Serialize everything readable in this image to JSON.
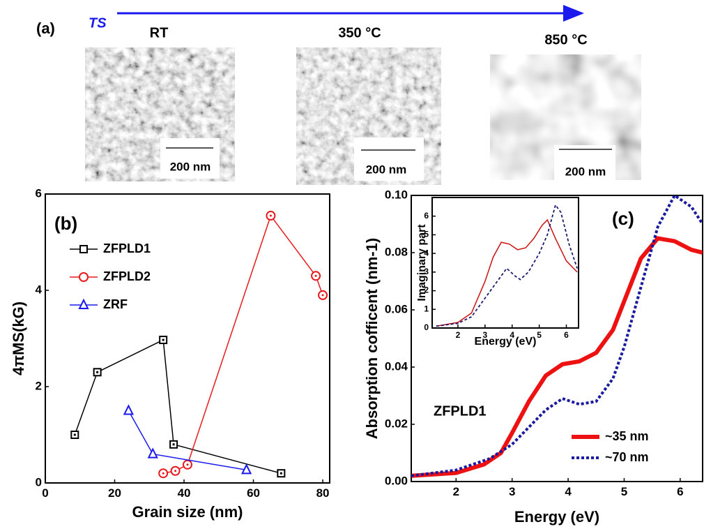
{
  "panel_a": {
    "label": "(a)",
    "arrow_label": "TS",
    "images": [
      {
        "caption": "RT",
        "scale_bar": "200 nm"
      },
      {
        "caption": "350 °C",
        "scale_bar": "200 nm"
      },
      {
        "caption": "850 °C",
        "scale_bar": "200 nm"
      }
    ]
  },
  "chart_data": [
    {
      "type": "line",
      "panel_label": "(b)",
      "xlabel": "Grain size (nm)",
      "ylabel": "4πMS(kG)",
      "xlim": [
        0,
        82
      ],
      "ylim": [
        0,
        6
      ],
      "xticks": [
        0,
        20,
        40,
        60,
        80
      ],
      "yticks": [
        0,
        2,
        4,
        6
      ],
      "legend": "upper left",
      "series": [
        {
          "name": "ZFPLD1",
          "color": "#000000",
          "marker": "square",
          "x": [
            8.5,
            15,
            34,
            37,
            68
          ],
          "values": [
            1.0,
            2.3,
            2.97,
            0.8,
            0.2
          ]
        },
        {
          "name": "ZFPLD2",
          "color": "#e8191c",
          "marker": "circle",
          "x": [
            34,
            37.5,
            41,
            65,
            78,
            80
          ],
          "values": [
            0.2,
            0.25,
            0.38,
            5.55,
            4.3,
            3.9
          ]
        },
        {
          "name": "ZRF",
          "color": "#1a1aee",
          "marker": "triangle",
          "x": [
            24,
            31,
            58
          ],
          "values": [
            1.5,
            0.6,
            0.27
          ]
        }
      ]
    },
    {
      "type": "line",
      "panel_label": "(c)",
      "annotation": "ZFPLD1",
      "xlabel": "Energy (eV)",
      "ylabel": "Absorption cofficent (nm-1)",
      "xlim": [
        1.2,
        6.4
      ],
      "ylim": [
        0,
        0.1
      ],
      "xticks": [
        2,
        3,
        4,
        5,
        6
      ],
      "yticks": [
        {
          "value": 0,
          "label": "0.00"
        },
        {
          "value": 0.02,
          "label": "0.02"
        },
        {
          "value": 0.04,
          "label": "0.04"
        },
        {
          "value": 0.06,
          "label": "0.06"
        },
        {
          "value": 0.08,
          "label": "0.08"
        },
        {
          "value": 0.1,
          "label": "0.10"
        }
      ],
      "legend": "lower right",
      "series": [
        {
          "name": "~35 nm",
          "color": "#ee1111",
          "dash": "solid",
          "width": 6,
          "x": [
            1.2,
            2,
            2.5,
            2.8,
            3.0,
            3.3,
            3.6,
            3.9,
            4.2,
            4.5,
            4.8,
            5.0,
            5.3,
            5.6,
            5.9,
            6.2,
            6.4
          ],
          "values": [
            0.002,
            0.003,
            0.006,
            0.01,
            0.017,
            0.028,
            0.037,
            0.041,
            0.042,
            0.045,
            0.053,
            0.063,
            0.078,
            0.085,
            0.084,
            0.081,
            0.08
          ]
        },
        {
          "name": "~70 nm",
          "color": "#1a1a9e",
          "dash": "dotted",
          "width": 4,
          "x": [
            1.2,
            2,
            2.6,
            3.0,
            3.3,
            3.6,
            3.9,
            4.2,
            4.5,
            4.8,
            5.0,
            5.3,
            5.6,
            5.9,
            6.2,
            6.4
          ],
          "values": [
            0.002,
            0.004,
            0.008,
            0.013,
            0.019,
            0.025,
            0.029,
            0.027,
            0.028,
            0.036,
            0.047,
            0.068,
            0.089,
            0.1,
            0.096,
            0.09
          ]
        }
      ]
    },
    {
      "type": "line",
      "xlabel": "Energy (eV)",
      "ylabel": "Imaginary part",
      "xlim": [
        1.05,
        6.45
      ],
      "ylim": [
        0,
        7
      ],
      "xticks": [
        2,
        3,
        4,
        5,
        6
      ],
      "yticks": [
        0,
        1,
        2,
        3,
        4,
        5,
        6
      ],
      "series": [
        {
          "color": "#cc1111",
          "dash": "solid",
          "width": 1.5,
          "x": [
            1.2,
            2,
            2.5,
            3,
            3.3,
            3.6,
            3.9,
            4.2,
            4.5,
            4.8,
            5.1,
            5.3,
            5.6,
            6,
            6.4
          ],
          "values": [
            0.1,
            0.3,
            0.8,
            2.5,
            3.8,
            4.6,
            4.5,
            4.2,
            4.3,
            4.8,
            5.5,
            5.8,
            4.8,
            3.6,
            3.0
          ]
        },
        {
          "color": "#1a1a6e",
          "dash": "dotted",
          "width": 1.8,
          "x": [
            1.2,
            2,
            2.5,
            3,
            3.5,
            3.8,
            4.1,
            4.3,
            4.6,
            5,
            5.3,
            5.6,
            5.8,
            6.1,
            6.4
          ],
          "values": [
            0.1,
            0.25,
            0.6,
            1.6,
            2.6,
            3.2,
            2.8,
            2.6,
            3.0,
            4.0,
            5.0,
            6.6,
            6.2,
            4.5,
            3.2
          ]
        }
      ]
    }
  ]
}
